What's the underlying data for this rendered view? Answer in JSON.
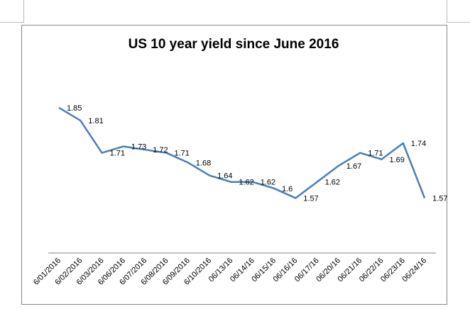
{
  "chart_data": {
    "type": "line",
    "title": "US 10 year yield since June 2016",
    "xlabel": "",
    "ylabel": "",
    "ylim": [
      1.4,
      1.92
    ],
    "grid": false,
    "legend": "none",
    "categories": [
      "6/01/2016",
      "6/02/2016",
      "6/03/2016",
      "6/06/2016",
      "6/07/2016",
      "6/08/2016",
      "6/09/2016",
      "6/10/2016",
      "06/13/16",
      "06/14/16",
      "06/15/16",
      "06/16/16",
      "06/17/16",
      "06/20/16",
      "06/21/16",
      "06/22/16",
      "06/23/16",
      "06/24/16"
    ],
    "series": [
      {
        "color": "#4a7ebb",
        "values": [
          1.85,
          1.81,
          1.71,
          1.73,
          1.72,
          1.71,
          1.68,
          1.64,
          1.62,
          1.62,
          1.6,
          1.57,
          1.62,
          1.67,
          1.71,
          1.69,
          1.74,
          1.57
        ],
        "labels": [
          "1.85",
          "1.81",
          "1.71",
          "1.73",
          "1.72",
          "1.71",
          "1.68",
          "1.64",
          "1.62",
          "1.62",
          "1.6",
          "1.57",
          "1.62",
          "1.67",
          "1.71",
          "1.69",
          "1.74",
          "1.57"
        ]
      }
    ]
  }
}
